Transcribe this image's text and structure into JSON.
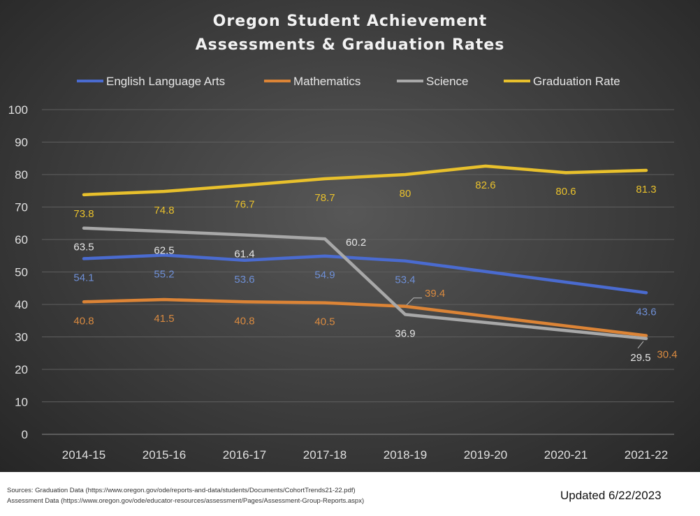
{
  "chart_data": {
    "type": "line",
    "title": [
      "Oregon Student Achievement",
      "Assessments & Graduation Rates"
    ],
    "categories": [
      "2014-15",
      "2015-16",
      "2016-17",
      "2017-18",
      "2018-19",
      "2019-20",
      "2020-21",
      "2021-22"
    ],
    "ylim": [
      0,
      100
    ],
    "yticks": [
      0,
      10,
      20,
      30,
      40,
      50,
      60,
      70,
      80,
      90,
      100
    ],
    "grid": true,
    "legend": "top",
    "series": [
      {
        "name": "English Language Arts",
        "color": "#4a6bd0",
        "label_color": "#6e8fd6",
        "values": [
          54.1,
          55.2,
          53.6,
          54.9,
          53.4,
          null,
          null,
          43.6
        ]
      },
      {
        "name": "Mathematics",
        "color": "#dc8436",
        "label_color": "#d98a40",
        "values": [
          40.8,
          41.5,
          40.8,
          40.5,
          39.4,
          null,
          null,
          30.4
        ]
      },
      {
        "name": "Science",
        "color": "#a8a8a8",
        "label_color": "#e6e6e6",
        "values": [
          63.5,
          62.5,
          61.4,
          60.2,
          36.9,
          null,
          null,
          29.5
        ]
      },
      {
        "name": "Graduation Rate",
        "color": "#e8c02c",
        "label_color": "#e8c02c",
        "values": [
          73.8,
          74.8,
          76.7,
          78.7,
          80,
          82.6,
          80.6,
          81.3
        ]
      }
    ]
  },
  "footer": {
    "sources_line1": "Sources: Graduation  Data (https://www.oregon.gov/ode/reports-and-data/students/Documents/CohortTrends21-22.pdf)",
    "sources_line2": "Assessment Data (https://www.oregon.gov/ode/educator-resources/assessment/Pages/Assessment-Group-Reports.aspx)",
    "updated": "Updated 6/22/2023"
  }
}
